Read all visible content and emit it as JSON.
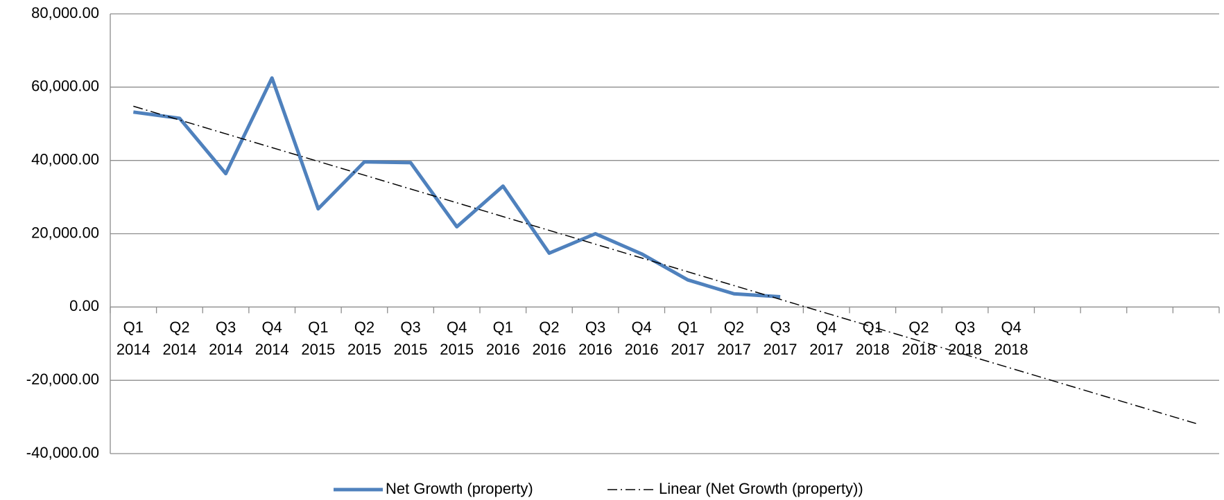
{
  "chart_data": {
    "type": "line",
    "categories": [
      "Q1 2014",
      "Q2 2014",
      "Q3 2014",
      "Q4 2014",
      "Q1 2015",
      "Q2 2015",
      "Q3 2015",
      "Q4 2015",
      "Q1 2016",
      "Q2 2016",
      "Q3 2016",
      "Q4 2016",
      "Q1 2017",
      "Q2 2017",
      "Q3 2017",
      "Q4 2017",
      "Q1 2018",
      "Q2 2018",
      "Q3 2018",
      "Q4 2018",
      null,
      null,
      null,
      null
    ],
    "series": [
      {
        "name": "Net Growth (property)",
        "color": "#4f81bd",
        "values": [
          53200,
          51500,
          36400,
          62500,
          26800,
          39600,
          39400,
          21900,
          33000,
          14700,
          20000,
          14500,
          7400,
          3600,
          2800,
          null,
          null,
          null,
          null,
          null,
          null,
          null,
          null,
          null
        ]
      },
      {
        "name": "Linear (Net Growth (property))",
        "color": "#000000",
        "values": [
          54800,
          51035,
          47270,
          43505,
          39740,
          35975,
          32210,
          28445,
          24680,
          20915,
          17150,
          13385,
          9620,
          5855,
          2090,
          -1675,
          -5440,
          -9205,
          -12970,
          -16735,
          -20500,
          -24265,
          -28030,
          -31795
        ]
      }
    ],
    "ylim": [
      -40000,
      80000
    ],
    "yticks": [
      {
        "value": -40000,
        "label": "-40,000.00"
      },
      {
        "value": -20000,
        "label": "-20,000.00"
      },
      {
        "value": 0,
        "label": "0.00"
      },
      {
        "value": 20000,
        "label": "20,000.00"
      },
      {
        "value": 40000,
        "label": "40,000.00"
      },
      {
        "value": 60000,
        "label": "60,000.00"
      },
      {
        "value": 80000,
        "label": "80,000.00"
      }
    ],
    "grid": true,
    "legend": "bottom"
  }
}
